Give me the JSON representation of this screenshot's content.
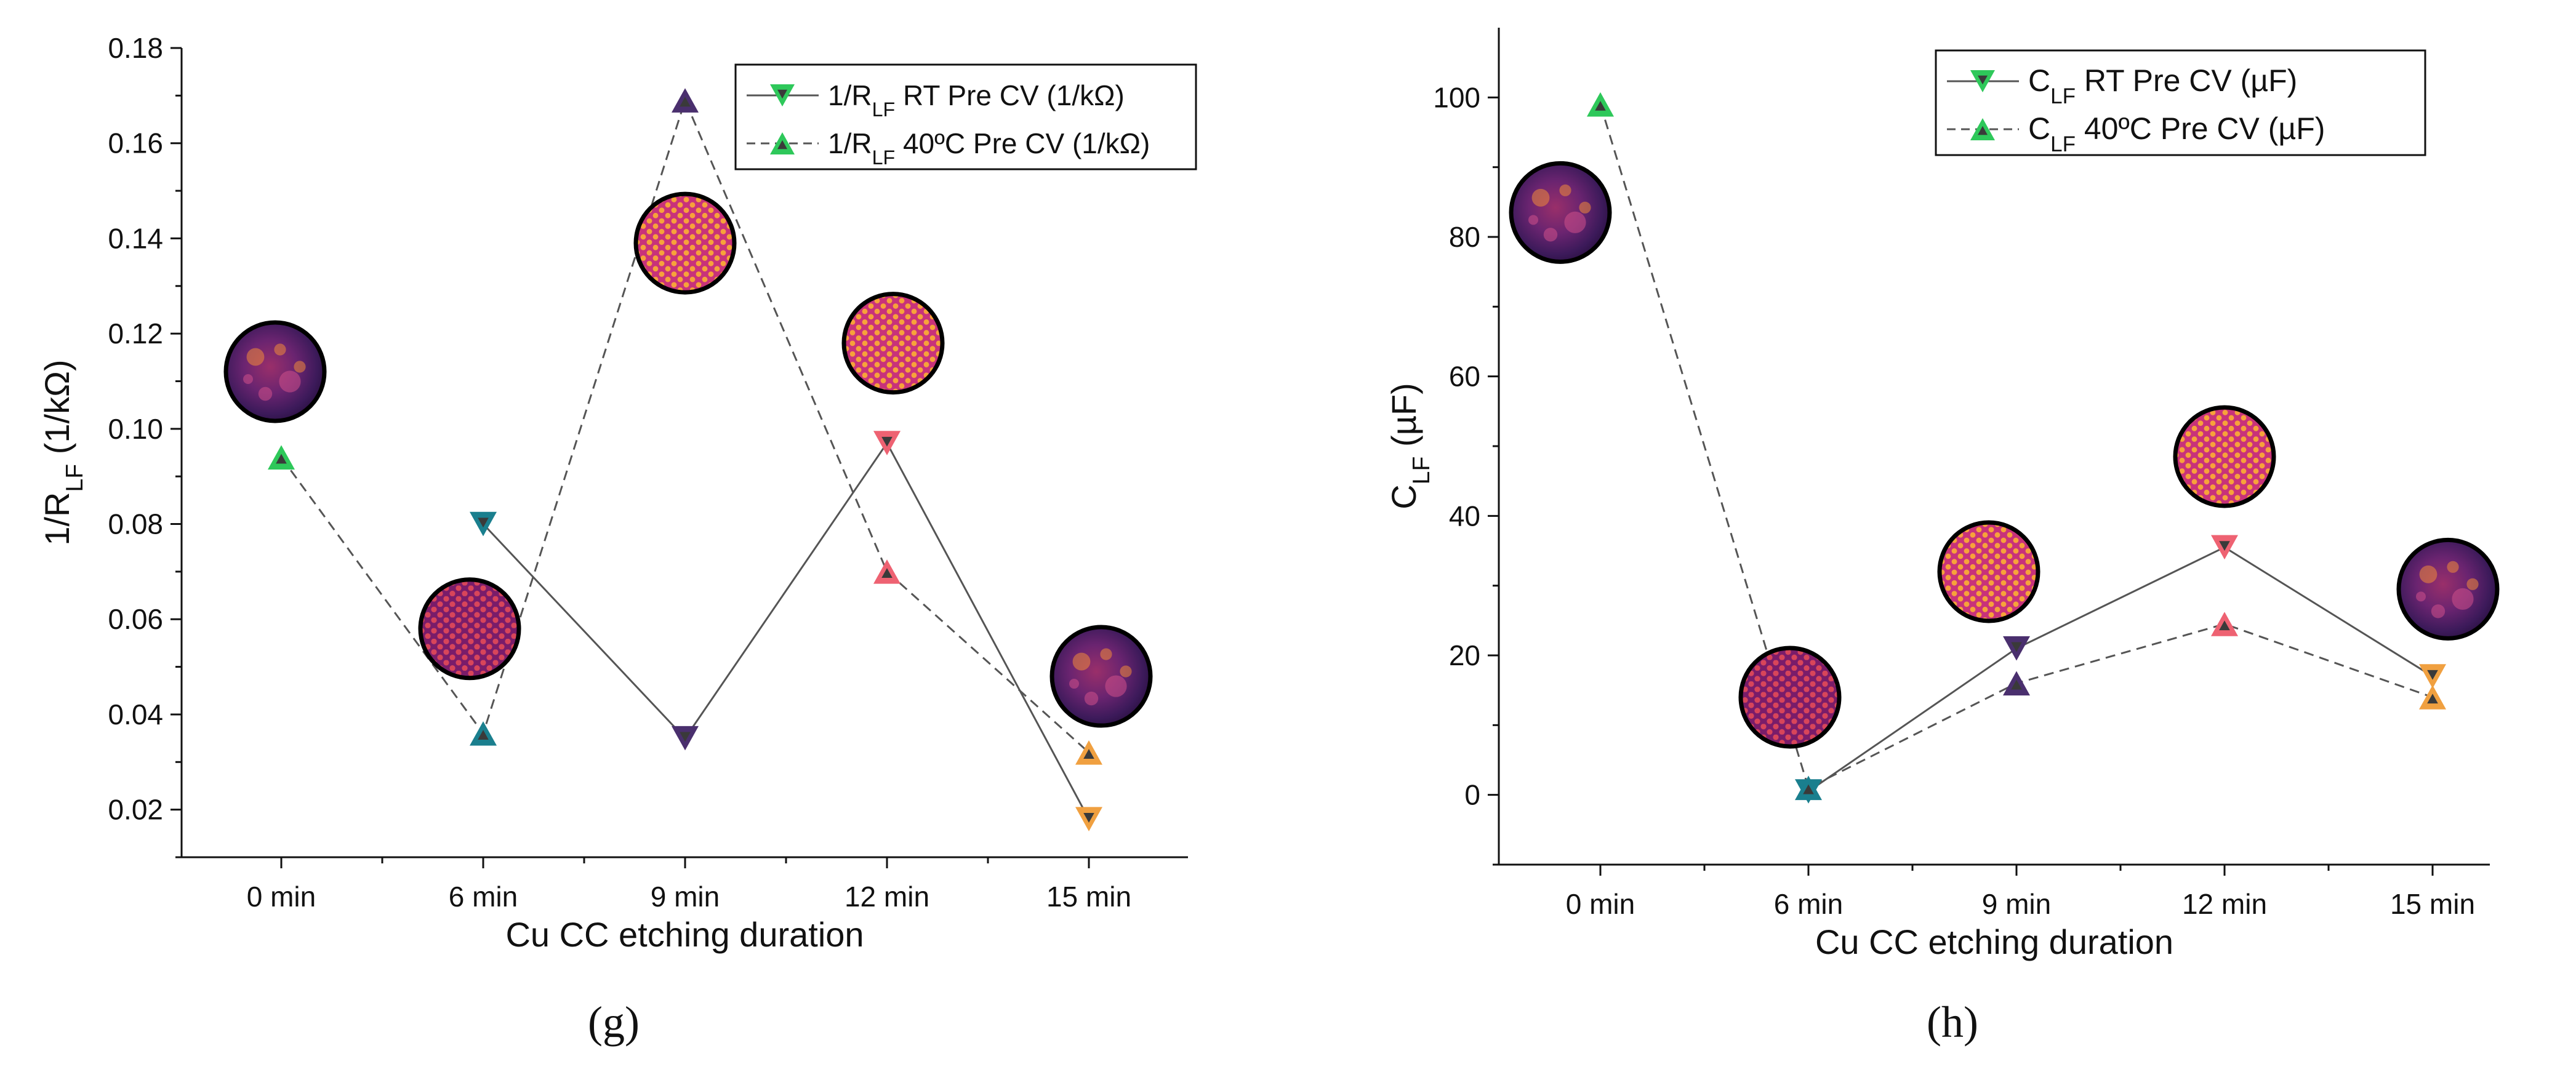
{
  "panels": [
    {
      "label": "(g)",
      "chart_data": {
        "type": "line",
        "categories": [
          "0 min",
          "6 min",
          "9 min",
          "12 min",
          "15 min"
        ],
        "xlabel": "Cu CC etching duration",
        "ylabel": {
          "base": "1/R",
          "sub": "LF",
          "unit": " (1/kΩ)"
        },
        "ylim": [
          0.01,
          0.18
        ],
        "yticks": [
          0.02,
          0.04,
          0.06,
          0.08,
          0.1,
          0.12,
          0.14,
          0.16,
          0.18
        ],
        "ytick_labels": [
          "0.02",
          "0.04",
          "0.06",
          "0.08",
          "0.10",
          "0.12",
          "0.14",
          "0.16",
          "0.18"
        ],
        "grid": false,
        "legend_position": "top-right",
        "series": [
          {
            "legend": {
              "pre": "1/R",
              "sub": "LF",
              "post": " RT Pre CV (1/kΩ)"
            },
            "marker": "down-triangle",
            "line_style": "solid",
            "values": [
              null,
              0.08,
              0.035,
              0.097,
              0.018
            ]
          },
          {
            "legend": {
              "pre": "1/R",
              "sub": "LF",
              "post": " 40ºC Pre CV (1/kΩ)"
            },
            "marker": "up-triangle",
            "line_style": "dashed",
            "values": [
              0.094,
              0.036,
              0.169,
              0.07,
              0.032
            ]
          }
        ],
        "point_colors": [
          "#2ec85a",
          "#1a7f8e",
          "#4a2f6e",
          "#ee6272",
          "#f0a040"
        ],
        "inset_images": [
          {
            "category": "0 min",
            "y": 0.112,
            "pattern": "mottled"
          },
          {
            "category": "6 min",
            "y": 0.058,
            "pattern": "hex-dots"
          },
          {
            "category": "9 min",
            "y": 0.139,
            "pattern": "hex-dots"
          },
          {
            "category": "12 min",
            "y": 0.118,
            "pattern": "hex-dots"
          },
          {
            "category": "15 min",
            "y": 0.048,
            "pattern": "mottled"
          }
        ]
      }
    },
    {
      "label": "(h)",
      "chart_data": {
        "type": "line",
        "categories": [
          "0 min",
          "6 min",
          "9 min",
          "12 min",
          "15 min"
        ],
        "xlabel": "Cu CC etching duration",
        "ylabel": {
          "base": "C",
          "sub": "LF",
          "unit": " (µF)"
        },
        "ylim": [
          -10,
          110
        ],
        "yticks": [
          0,
          20,
          40,
          60,
          80,
          100
        ],
        "ytick_labels": [
          "0",
          "20",
          "40",
          "60",
          "80",
          "100"
        ],
        "grid": false,
        "legend_position": "top-right",
        "series": [
          {
            "legend": {
              "pre": "C",
              "sub": "LF",
              "post": " RT Pre CV (µF)"
            },
            "marker": "down-triangle",
            "line_style": "solid",
            "values": [
              null,
              0.5,
              21,
              35.5,
              17
            ]
          },
          {
            "legend": {
              "pre": "C",
              "sub": "LF",
              "post": " 40ºC Pre CV (µF)"
            },
            "marker": "up-triangle",
            "line_style": "dashed",
            "values": [
              99,
              1,
              16,
              24.5,
              14
            ]
          }
        ],
        "point_colors": [
          "#2ec85a",
          "#1a7f8e",
          "#4a2f6e",
          "#ee6272",
          "#f0a040"
        ],
        "inset_images": [
          {
            "category": "0 min",
            "y": 83.5,
            "pattern": "mottled"
          },
          {
            "category": "6 min",
            "y": 14,
            "pattern": "hex-dots"
          },
          {
            "category": "9 min",
            "y": 32,
            "pattern": "hex-dots"
          },
          {
            "category": "12 min",
            "y": 48.5,
            "pattern": "hex-dots"
          },
          {
            "category": "15 min",
            "y": 29.5,
            "pattern": "mottled"
          }
        ]
      }
    }
  ]
}
